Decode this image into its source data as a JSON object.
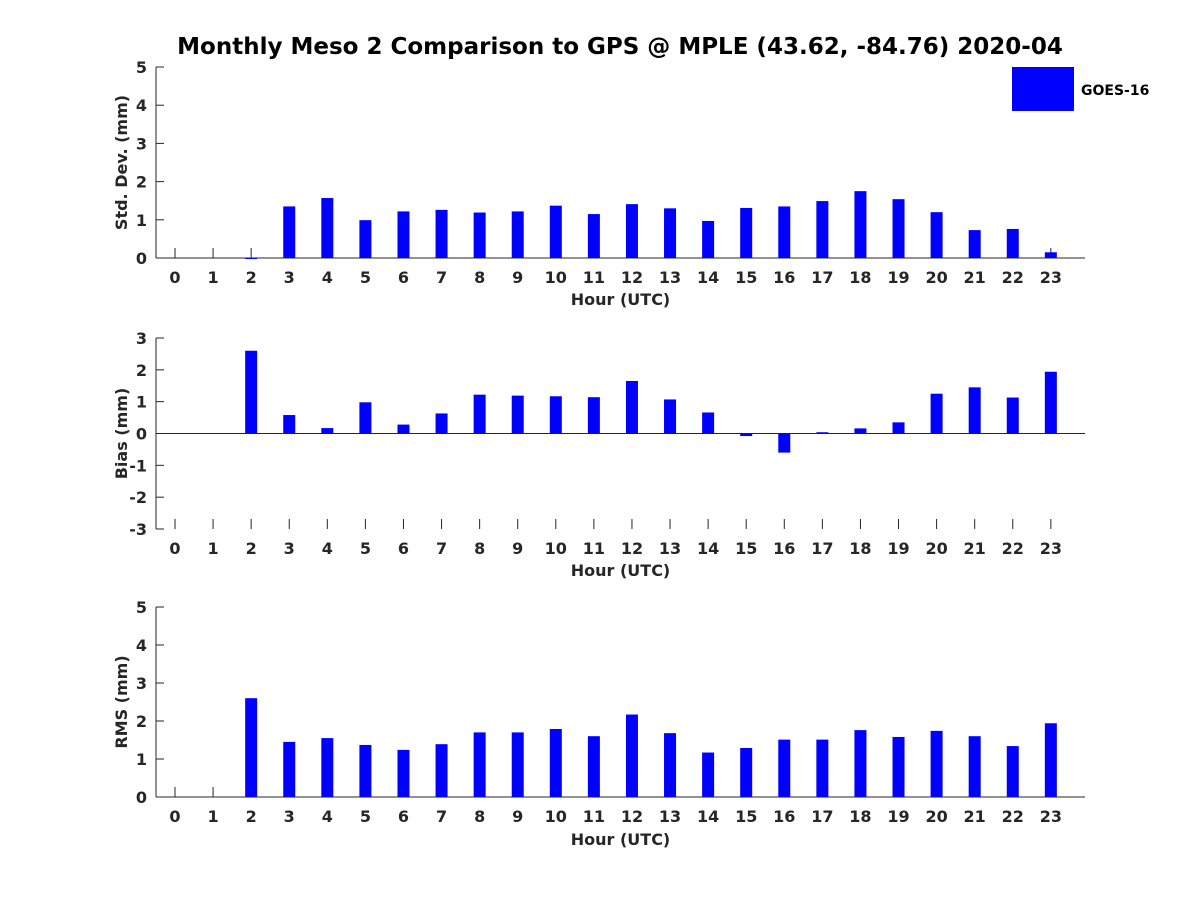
{
  "title": "Monthly Meso 2 Comparison to GPS @ MPLE (43.62, -84.76) 2020-04",
  "legend": {
    "label": "GOES-16",
    "color": "#0000ff",
    "position": "top-right"
  },
  "chart_data": [
    {
      "type": "bar",
      "xlabel": "Hour (UTC)",
      "ylabel": "Std. Dev. (mm)",
      "ylim": [
        0,
        5
      ],
      "yticks": [
        0,
        1,
        2,
        3,
        4,
        5
      ],
      "categories": [
        "0",
        "1",
        "2",
        "3",
        "4",
        "5",
        "6",
        "7",
        "8",
        "9",
        "10",
        "11",
        "12",
        "13",
        "14",
        "15",
        "16",
        "17",
        "18",
        "19",
        "20",
        "21",
        "22",
        "23"
      ],
      "series": [
        {
          "name": "GOES-16",
          "values": [
            null,
            null,
            0,
            1.35,
            1.57,
            0.99,
            1.22,
            1.26,
            1.19,
            1.22,
            1.37,
            1.15,
            1.41,
            1.3,
            0.97,
            1.31,
            1.35,
            1.49,
            1.75,
            1.54,
            1.2,
            0.73,
            0.76,
            0.15
          ]
        }
      ],
      "grid": false
    },
    {
      "type": "bar",
      "xlabel": "Hour (UTC)",
      "ylabel": "Bias (mm)",
      "ylim": [
        -3,
        3
      ],
      "yticks": [
        -3,
        -2,
        -1,
        0,
        1,
        2,
        3
      ],
      "categories": [
        "0",
        "1",
        "2",
        "3",
        "4",
        "5",
        "6",
        "7",
        "8",
        "9",
        "10",
        "11",
        "12",
        "13",
        "14",
        "15",
        "16",
        "17",
        "18",
        "19",
        "20",
        "21",
        "22",
        "23"
      ],
      "series": [
        {
          "name": "GOES-16",
          "values": [
            null,
            null,
            2.6,
            0.58,
            0.17,
            0.98,
            0.28,
            0.63,
            1.22,
            1.19,
            1.17,
            1.14,
            1.65,
            1.07,
            0.66,
            -0.08,
            -0.6,
            0.04,
            0.16,
            0.35,
            1.25,
            1.45,
            1.13,
            1.94
          ]
        }
      ],
      "grid": false
    },
    {
      "type": "bar",
      "xlabel": "Hour (UTC)",
      "ylabel": "RMS (mm)",
      "ylim": [
        0,
        5
      ],
      "yticks": [
        0,
        1,
        2,
        3,
        4,
        5
      ],
      "categories": [
        "0",
        "1",
        "2",
        "3",
        "4",
        "5",
        "6",
        "7",
        "8",
        "9",
        "10",
        "11",
        "12",
        "13",
        "14",
        "15",
        "16",
        "17",
        "18",
        "19",
        "20",
        "21",
        "22",
        "23"
      ],
      "series": [
        {
          "name": "GOES-16",
          "values": [
            null,
            null,
            2.6,
            1.45,
            1.55,
            1.37,
            1.24,
            1.39,
            1.7,
            1.7,
            1.79,
            1.6,
            2.17,
            1.68,
            1.17,
            1.29,
            1.51,
            1.51,
            1.76,
            1.58,
            1.74,
            1.6,
            1.34,
            1.94
          ]
        }
      ],
      "grid": false
    }
  ]
}
